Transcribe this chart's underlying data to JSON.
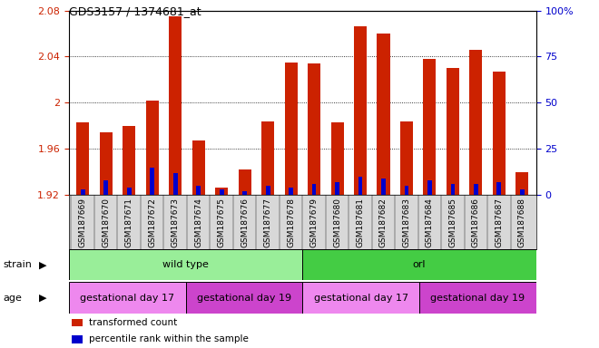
{
  "title": "GDS3157 / 1374681_at",
  "samples": [
    "GSM187669",
    "GSM187670",
    "GSM187671",
    "GSM187672",
    "GSM187673",
    "GSM187674",
    "GSM187675",
    "GSM187676",
    "GSM187677",
    "GSM187678",
    "GSM187679",
    "GSM187680",
    "GSM187681",
    "GSM187682",
    "GSM187683",
    "GSM187684",
    "GSM187685",
    "GSM187686",
    "GSM187687",
    "GSM187688"
  ],
  "transformed_count": [
    1.983,
    1.974,
    1.98,
    2.002,
    2.075,
    1.967,
    1.926,
    1.942,
    1.984,
    2.035,
    2.034,
    1.983,
    2.066,
    2.06,
    1.984,
    2.038,
    2.03,
    2.046,
    2.027,
    1.94
  ],
  "percentile_rank": [
    3,
    8,
    4,
    15,
    12,
    5,
    3,
    2,
    5,
    4,
    6,
    7,
    10,
    9,
    5,
    8,
    6,
    6,
    7,
    3
  ],
  "ylim_left": [
    1.92,
    2.08
  ],
  "ylim_right": [
    0,
    100
  ],
  "yticks_left": [
    1.92,
    1.96,
    2.0,
    2.04,
    2.08
  ],
  "yticks_right_labels": [
    "0",
    "25",
    "50",
    "75",
    "100%"
  ],
  "yticks_right_vals": [
    0,
    25,
    50,
    75,
    100
  ],
  "bar_color_red": "#cc2200",
  "bar_color_blue": "#0000cc",
  "plot_bg": "#ffffff",
  "xtick_bg": "#d8d8d8",
  "strain_groups": [
    {
      "label": "wild type",
      "start": 0,
      "end": 10,
      "color": "#99ee99"
    },
    {
      "label": "orl",
      "start": 10,
      "end": 20,
      "color": "#44cc44"
    }
  ],
  "age_groups": [
    {
      "label": "gestational day 17",
      "start": 0,
      "end": 5,
      "color": "#ee88ee"
    },
    {
      "label": "gestational day 19",
      "start": 5,
      "end": 10,
      "color": "#cc44cc"
    },
    {
      "label": "gestational day 17",
      "start": 10,
      "end": 15,
      "color": "#ee88ee"
    },
    {
      "label": "gestational day 19",
      "start": 15,
      "end": 20,
      "color": "#cc44cc"
    }
  ],
  "legend_items": [
    {
      "label": "transformed count",
      "color": "#cc2200"
    },
    {
      "label": "percentile rank within the sample",
      "color": "#0000cc"
    }
  ]
}
